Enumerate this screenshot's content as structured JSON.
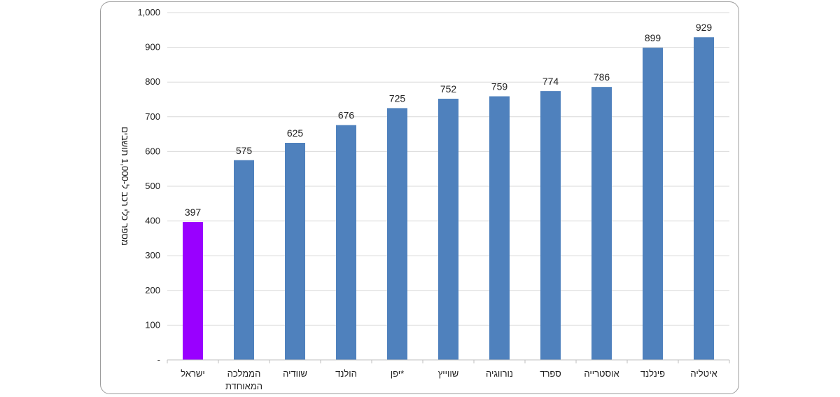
{
  "chart_data": {
    "type": "bar",
    "title": "",
    "xlabel": "",
    "ylabel": "מספר כלי רכב ל-1,000 תושבים",
    "ylim": [
      0,
      1000
    ],
    "yticks": [
      0,
      100,
      200,
      300,
      400,
      500,
      600,
      700,
      800,
      900,
      1000
    ],
    "ytick_labels": [
      "-",
      "100",
      "200",
      "300",
      "400",
      "500",
      "600",
      "700",
      "800",
      "900",
      "1,000"
    ],
    "grid": true,
    "legend": "none",
    "categories": [
      [
        "ישראל"
      ],
      [
        "הממלכה",
        "המאוחדת"
      ],
      [
        "שוודיה"
      ],
      [
        "הולנד"
      ],
      [
        "יפן*"
      ],
      [
        "שווייץ"
      ],
      [
        "נורווגיה"
      ],
      [
        "ספרד"
      ],
      [
        "אוסטרייה"
      ],
      [
        "פינלנד"
      ],
      [
        "איטליה"
      ]
    ],
    "values": [
      397,
      575,
      625,
      676,
      725,
      752,
      759,
      774,
      786,
      899,
      929
    ],
    "data_labels": [
      "397",
      "575",
      "625",
      "676",
      "725",
      "752",
      "759",
      "774",
      "786",
      "899",
      "929"
    ],
    "colors": {
      "default": "#4F81BD",
      "highlight": "#9900FF",
      "highlight_index": 0,
      "grid": "#d9d9d9",
      "axis": "#bfbfbf"
    }
  }
}
